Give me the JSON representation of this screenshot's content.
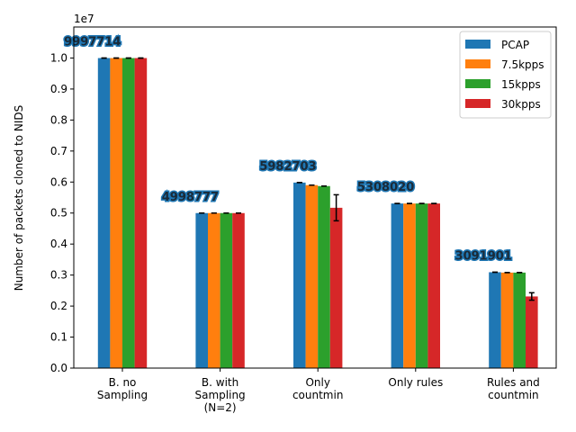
{
  "chart_data": {
    "type": "bar",
    "title": "",
    "xlabel": "",
    "ylabel": "Number of packets cloned to NIDS",
    "y_scale_label": "1e7",
    "y_multiplier": 10000000,
    "ylim": [
      0,
      1.1
    ],
    "yticks": [
      "0.0",
      "0.1",
      "0.2",
      "0.3",
      "0.4",
      "0.5",
      "0.6",
      "0.7",
      "0.8",
      "0.9",
      "1.0"
    ],
    "categories": [
      [
        "B. no",
        "Sampling"
      ],
      [
        "B. with",
        "Sampling",
        "(N=2)"
      ],
      [
        "Only",
        "countmin"
      ],
      [
        "Only rules"
      ],
      [
        "Rules and",
        "countmin"
      ]
    ],
    "series": [
      {
        "name": "PCAP",
        "color": "#1f77b4",
        "values": [
          0.9998,
          0.4999,
          0.5983,
          0.5308,
          0.3092
        ],
        "errors": [
          0.0,
          0.0,
          0.0,
          0.0,
          0.0
        ]
      },
      {
        "name": "7.5kpps",
        "color": "#ff7f0e",
        "values": [
          0.9998,
          0.4999,
          0.59,
          0.5308,
          0.308
        ],
        "errors": [
          0.0,
          0.0,
          0.0,
          0.0,
          0.0
        ]
      },
      {
        "name": "15kpps",
        "color": "#2ca02c",
        "values": [
          0.9998,
          0.4999,
          0.587,
          0.5308,
          0.308
        ],
        "errors": [
          0.0,
          0.0,
          0.0,
          0.0,
          0.0
        ]
      },
      {
        "name": "30kpps",
        "color": "#d62728",
        "values": [
          0.9998,
          0.4999,
          0.517,
          0.5308,
          0.231
        ],
        "errors": [
          0.0,
          0.0,
          0.042,
          0.0,
          0.012
        ]
      }
    ],
    "value_labels": [
      "9997714",
      "4998777",
      "5982703",
      "5308020",
      "3091901"
    ],
    "legend_position": "top-right",
    "grid": false
  }
}
